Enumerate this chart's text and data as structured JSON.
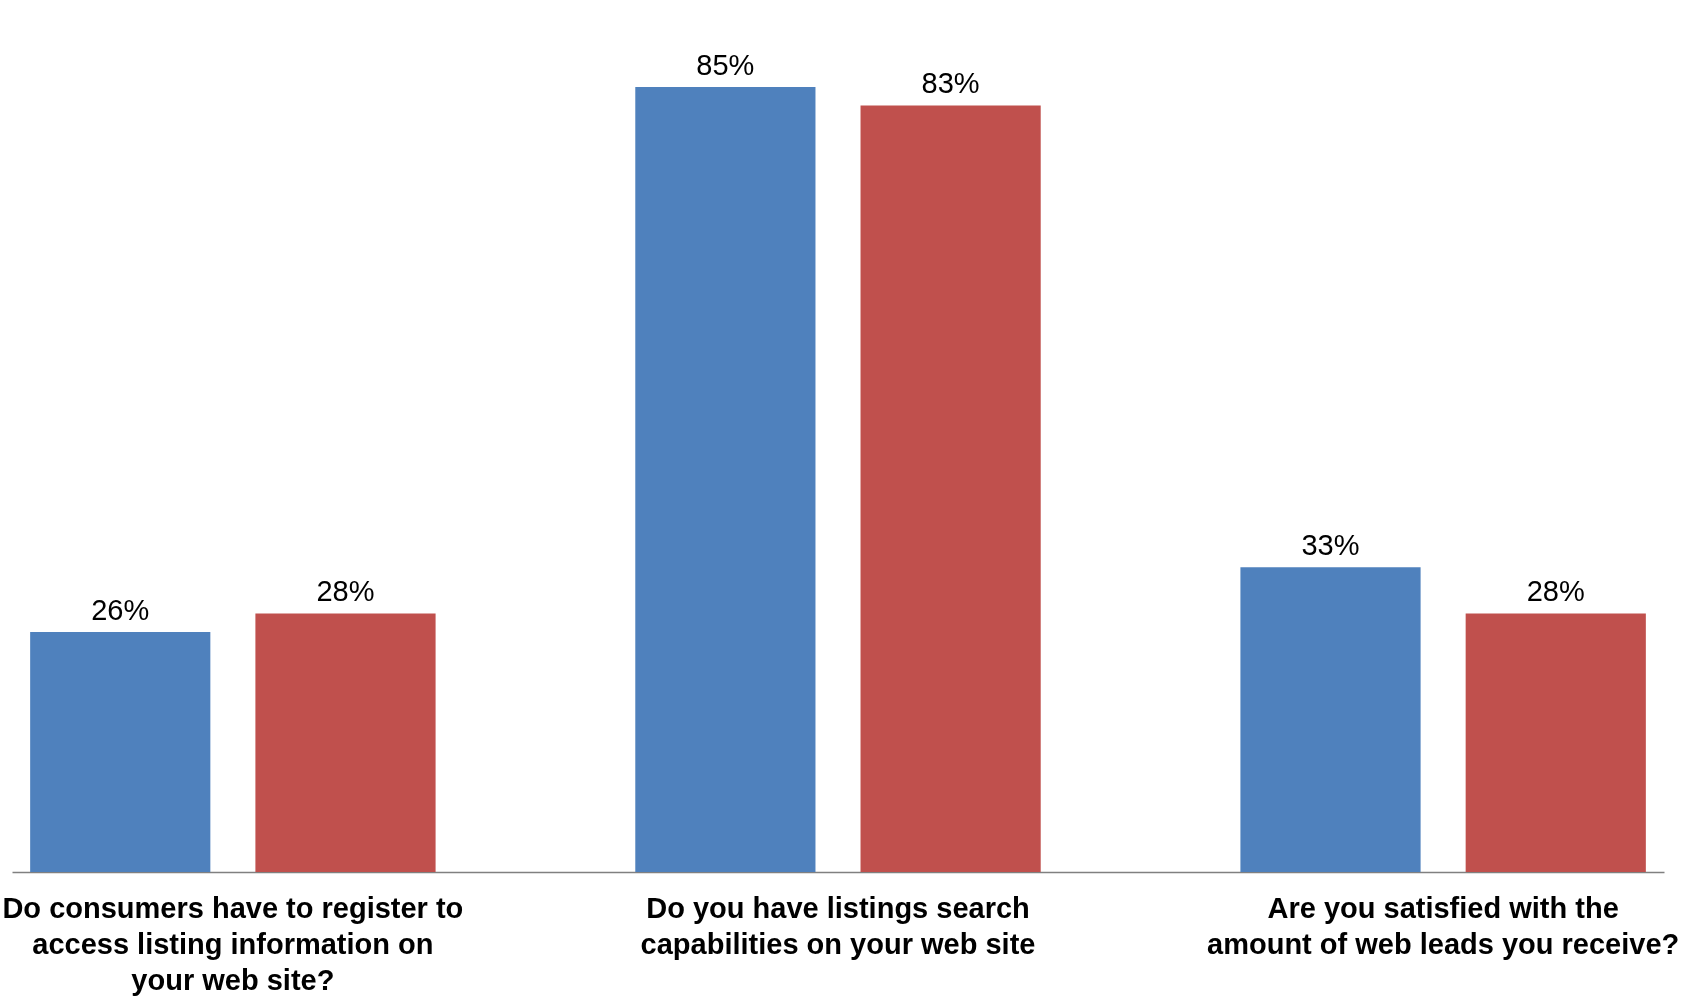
{
  "chart_data": {
    "type": "bar",
    "categories": [
      "Do consumers have to register to access listing information on your web site?",
      "Do you have listings search capabilities on your web site",
      "Are you satisfied with the amount of web leads you receive?"
    ],
    "series": [
      {
        "color": "#4f81bd",
        "values": [
          26,
          85,
          33
        ],
        "value_labels": [
          "26%",
          "85%",
          "33%"
        ]
      },
      {
        "color": "#c0504d",
        "values": [
          28,
          83,
          28
        ],
        "value_labels": [
          "28%",
          "83%",
          "28%"
        ]
      }
    ],
    "grid": false,
    "tick_labels": "x"
  }
}
